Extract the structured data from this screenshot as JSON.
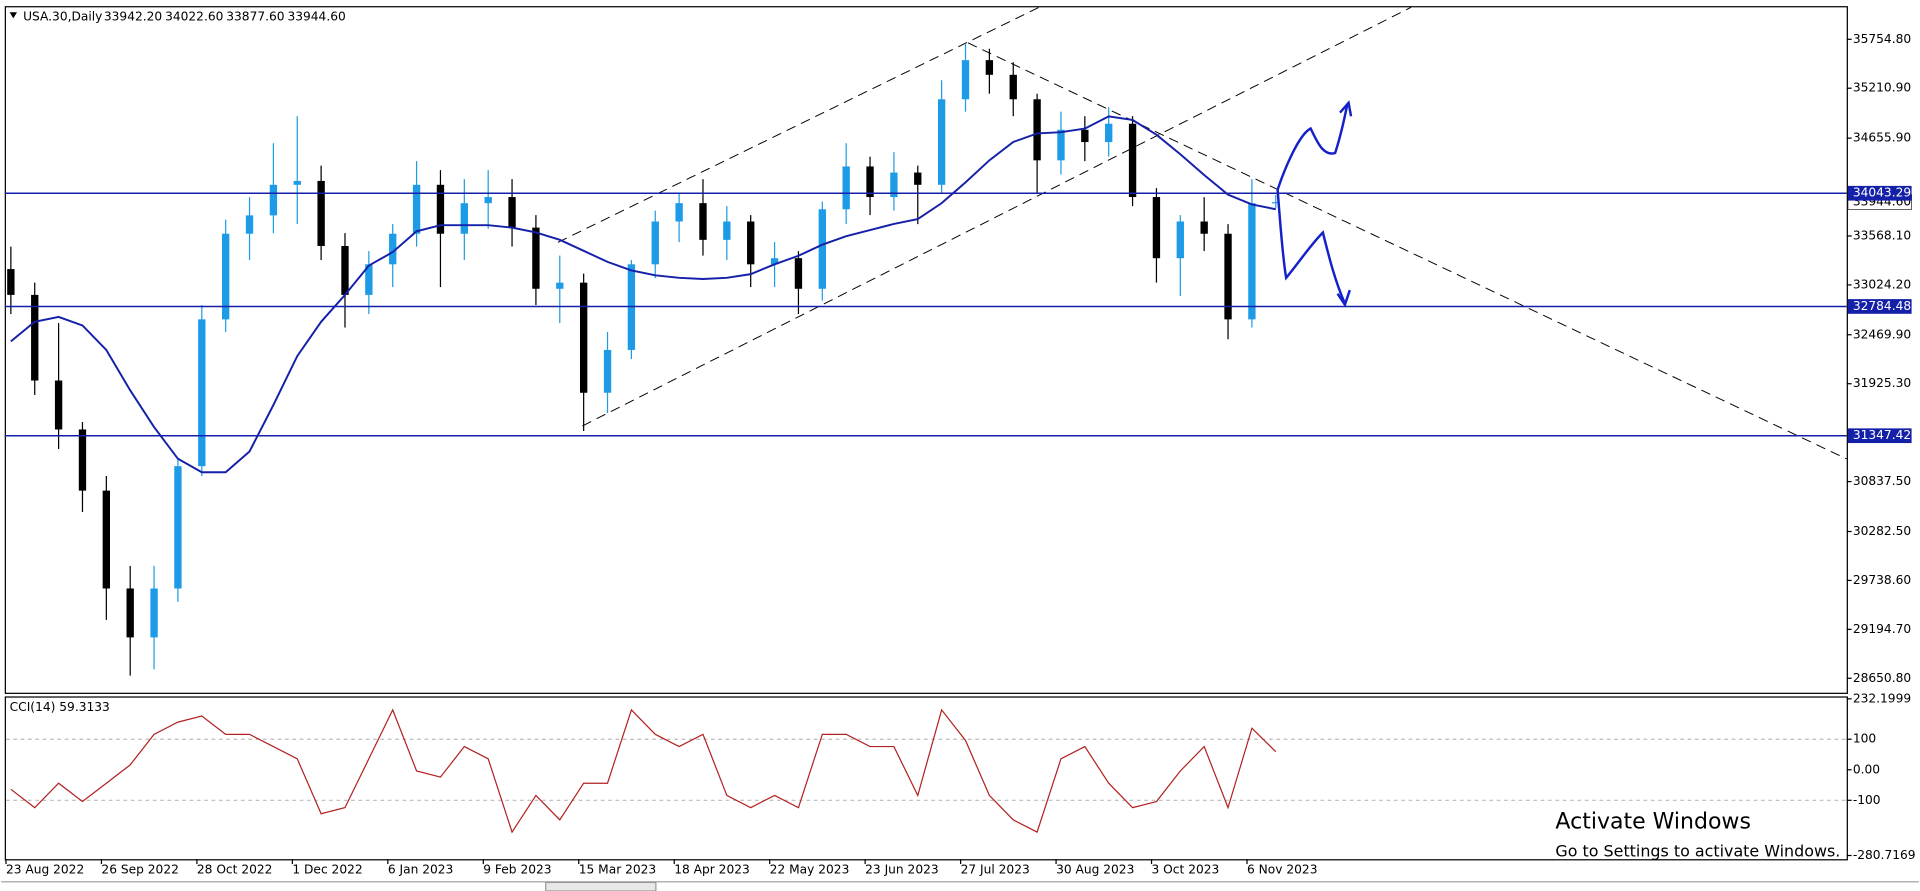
{
  "header": {
    "symbol": "USA.30,Daily",
    "ohlc": [
      "33942.20",
      "34022.60",
      "33877.60",
      "33944.60"
    ]
  },
  "chart_data": [
    {
      "type": "candlestick",
      "categories": [
        "23 Aug 2022",
        null,
        null,
        null,
        "26 Sep 2022",
        null,
        null,
        null,
        "28 Oct 2022",
        null,
        null,
        null,
        "1 Dec 2022",
        null,
        null,
        null,
        "6 Jan 2023",
        null,
        null,
        null,
        "9 Feb 2023",
        null,
        null,
        null,
        "15 Mar 2023",
        null,
        null,
        null,
        "18 Apr 2023",
        null,
        null,
        null,
        "22 May 2023",
        null,
        null,
        null,
        "23 Jun 2023",
        null,
        null,
        null,
        "27 Jul 2023",
        null,
        null,
        null,
        "30 Aug 2023",
        null,
        null,
        null,
        "3 Oct 2023",
        null,
        null,
        null,
        "6 Nov 2023",
        null
      ],
      "open": [
        33200,
        32913,
        31961,
        31417,
        30737,
        29649,
        29105,
        29649,
        31009,
        32641,
        33593,
        33797,
        34137,
        34180,
        33457,
        32913,
        33253,
        33593,
        34137,
        33593,
        33933,
        34001,
        33661,
        32981,
        33049,
        31825,
        32301,
        33253,
        33729,
        33933,
        33525,
        33729,
        33253,
        33321,
        32981,
        33865,
        34341,
        34001,
        34273,
        34137,
        35088,
        35523,
        35360,
        35088,
        34409,
        34749,
        34612,
        34816,
        34001,
        33321,
        33729,
        33593,
        32641,
        33942.2
      ],
      "high": [
        33450,
        33050,
        32600,
        31500,
        30900,
        29900,
        29900,
        31100,
        32800,
        33750,
        34000,
        34600,
        34900,
        34350,
        33600,
        33400,
        33700,
        34400,
        34300,
        34200,
        34300,
        34200,
        33800,
        33350,
        33150,
        32500,
        33300,
        33850,
        34050,
        34200,
        33900,
        33800,
        33500,
        33400,
        33950,
        34600,
        34450,
        34500,
        34350,
        35300,
        35700,
        35650,
        35500,
        35150,
        34950,
        34900,
        35000,
        34900,
        34100,
        33800,
        34000,
        33700,
        34200,
        34022.6
      ],
      "low": [
        32700,
        31800,
        31200,
        30500,
        29300,
        28680,
        28750,
        29500,
        30900,
        32500,
        33300,
        33600,
        33700,
        33300,
        32550,
        32700,
        33000,
        33450,
        33000,
        33300,
        33650,
        33450,
        32800,
        32600,
        31400,
        31600,
        32200,
        33100,
        33500,
        33350,
        33300,
        33000,
        33000,
        32700,
        32850,
        33700,
        33800,
        33850,
        33700,
        34050,
        34950,
        35150,
        34900,
        34050,
        34250,
        34400,
        34450,
        33900,
        33050,
        32900,
        33400,
        32420,
        32550,
        33877.6
      ],
      "close": [
        32913,
        31961,
        31417,
        30737,
        29649,
        29105,
        29649,
        31009,
        32641,
        33593,
        33797,
        34137,
        34180,
        33457,
        32913,
        33253,
        33593,
        34137,
        33593,
        33933,
        34001,
        33661,
        32981,
        33049,
        31825,
        32301,
        33253,
        33729,
        33933,
        33525,
        33729,
        33253,
        33321,
        32981,
        33865,
        34341,
        34001,
        34273,
        34137,
        35088,
        35523,
        35360,
        35088,
        34409,
        34749,
        34612,
        34816,
        34001,
        33321,
        33729,
        33593,
        32641,
        33933,
        33944.6
      ],
      "up_color": "#1e9be6",
      "down_color": "#000000",
      "ma": {
        "color": "#1420a8",
        "values": [
          32396,
          32614,
          32668,
          32573,
          32301,
          31852,
          31444,
          31091,
          30941,
          30941,
          31172,
          31689,
          32233,
          32614,
          32913,
          33239,
          33389,
          33620,
          33688,
          33688,
          33688,
          33661,
          33607,
          33525,
          33403,
          33280,
          33185,
          33131,
          33103,
          33090,
          33103,
          33144,
          33253,
          33348,
          33471,
          33566,
          33634,
          33702,
          33756,
          33933,
          34164,
          34409,
          34613,
          34708,
          34722,
          34762,
          34898,
          34858,
          34694,
          34477,
          34246,
          34028,
          33919,
          33865
        ]
      },
      "hlines": [
        34043.29,
        32784.48,
        31347.42
      ],
      "hline_color": "#1420a8",
      "current_price": {
        "value": 33944.6,
        "label": "33944.60"
      },
      "ylim": [
        28490,
        36110
      ],
      "yticks": [
        {
          "value": 35754.8,
          "label": "35754.80"
        },
        {
          "value": 35210.9,
          "label": "35210.90"
        },
        {
          "value": 34655.9,
          "label": "34655.90"
        },
        {
          "value": 33568.1,
          "label": "33568.10"
        },
        {
          "value": 33024.2,
          "label": "33024.20"
        },
        {
          "value": 32469.9,
          "label": "32469.90"
        },
        {
          "value": 31925.3,
          "label": "31925.30"
        },
        {
          "value": 30837.5,
          "label": "30837.50"
        },
        {
          "value": 30282.5,
          "label": "30282.50"
        },
        {
          "value": 29738.6,
          "label": "29738.60"
        },
        {
          "value": 29194.7,
          "label": "29194.70"
        },
        {
          "value": 28650.8,
          "label": "28650.80"
        }
      ]
    },
    {
      "type": "line",
      "title": "CCI(14) 59.3133",
      "color": "#b22222",
      "values": [
        -64,
        -124,
        -44,
        -104,
        -44,
        16,
        116,
        156,
        176,
        116,
        116,
        76,
        36,
        -144,
        -124,
        36,
        196,
        -4,
        -24,
        76,
        36,
        -204,
        -84,
        -164,
        -44,
        -44,
        196,
        116,
        76,
        116,
        -84,
        -124,
        -84,
        -124,
        116,
        116,
        76,
        76,
        -84,
        196,
        96,
        -84,
        -164,
        -204,
        36,
        76,
        -44,
        -124,
        -104,
        -4,
        76,
        -124,
        136,
        59.3133
      ],
      "ylim": [
        -280.7169,
        232.1999
      ],
      "yticks": [
        232.1999,
        100,
        {
          "value": 0,
          "label": "0.00"
        },
        -100,
        -280.7169
      ],
      "levels": [
        100,
        -100
      ]
    }
  ],
  "watermark": {
    "title": "Activate Windows",
    "subtitle": "Go to Settings to activate Windows."
  }
}
